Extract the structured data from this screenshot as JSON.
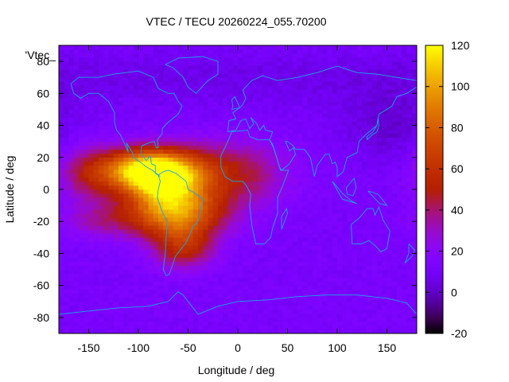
{
  "chart_data": {
    "type": "heatmap",
    "title": "VTEC / TECU 20260224_055.70200",
    "xlabel": "Longitude / deg",
    "ylabel": "Latitude / deg",
    "legend_key": "'Vtec_",
    "xlim": [
      -180,
      180
    ],
    "ylim": [
      -90,
      90
    ],
    "xticks": [
      -150,
      -100,
      -50,
      0,
      50,
      100,
      150
    ],
    "yticks": [
      -80,
      -60,
      -40,
      -20,
      0,
      20,
      40,
      60,
      80
    ],
    "colorbar": {
      "range": [
        -20,
        120
      ],
      "ticks": [
        -20,
        0,
        20,
        40,
        60,
        80,
        100,
        120
      ],
      "palette": "black-purple-red-orange-yellow"
    },
    "grid_resolution_deg": {
      "lon": 5,
      "lat": 2.5
    },
    "background_value": 12,
    "features": [
      {
        "name": "equatorial anomaly north crest (Central America)",
        "lon": -95,
        "lat": 12,
        "peak": 100,
        "sigma_lon": 30,
        "sigma_lat": 9
      },
      {
        "name": "crest over northern South America",
        "lon": -70,
        "lat": 5,
        "peak": 85,
        "sigma_lon": 28,
        "sigma_lat": 12
      },
      {
        "name": "south crest over South America",
        "lon": -65,
        "lat": -15,
        "peak": 80,
        "sigma_lon": 35,
        "sigma_lat": 10
      },
      {
        "name": "extension over Atlantic / West Africa",
        "lon": -10,
        "lat": 10,
        "peak": 48,
        "sigma_lon": 40,
        "sigma_lat": 14
      },
      {
        "name": "southern South America tail",
        "lon": -55,
        "lat": -35,
        "peak": 55,
        "sigma_lon": 22,
        "sigma_lat": 10
      },
      {
        "name": "eastern Pacific western flank",
        "lon": -150,
        "lat": 10,
        "peak": 40,
        "sigma_lon": 22,
        "sigma_lat": 12
      },
      {
        "name": "weak southern Pacific band",
        "lon": -140,
        "lat": -20,
        "peak": 30,
        "sigma_lon": 25,
        "sigma_lat": 8
      },
      {
        "name": "western Pacific / Asia low",
        "lon": 150,
        "lat": 40,
        "peak": -6,
        "sigma_lon": 30,
        "sigma_lat": 15
      }
    ],
    "overlay": "continent outlines (cyan)"
  }
}
